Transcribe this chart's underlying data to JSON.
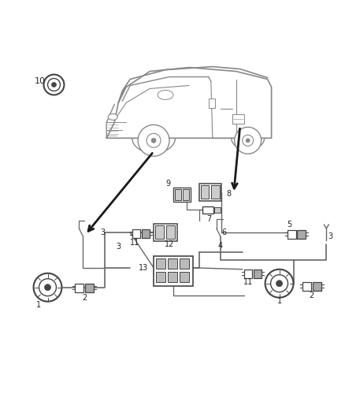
{
  "bg_color": "#ffffff",
  "line_color": "#666666",
  "dark_line": "#1a1a1a",
  "figure_size": [
    4.38,
    5.33
  ],
  "dpi": 100,
  "van_color": "#888888",
  "component_color": "#444444"
}
